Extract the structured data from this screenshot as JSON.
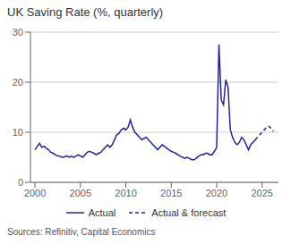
{
  "chart_data": {
    "type": "line",
    "title": "UK Saving Rate (%, quarterly)",
    "source": "Sources: Refinitiv, Capital Economics",
    "xlim": [
      1999.5,
      2026.8
    ],
    "xticks": [
      2000,
      2005,
      2010,
      2015,
      2020,
      2025
    ],
    "ylim": [
      0,
      30
    ],
    "yticks": [
      0,
      10,
      20,
      30
    ],
    "grid": true,
    "legend": "bottom",
    "series": [
      {
        "name": "Actual",
        "color": "#2323A0",
        "line_style": "solid",
        "x": [
          2000.0,
          2000.25,
          2000.5,
          2000.75,
          2001.0,
          2001.25,
          2001.5,
          2001.75,
          2002.0,
          2002.25,
          2002.5,
          2002.75,
          2003.0,
          2003.25,
          2003.5,
          2003.75,
          2004.0,
          2004.25,
          2004.5,
          2004.75,
          2005.0,
          2005.25,
          2005.5,
          2005.75,
          2006.0,
          2006.25,
          2006.5,
          2006.75,
          2007.0,
          2007.25,
          2007.5,
          2007.75,
          2008.0,
          2008.25,
          2008.5,
          2008.75,
          2009.0,
          2009.25,
          2009.5,
          2009.75,
          2010.0,
          2010.25,
          2010.5,
          2010.75,
          2011.0,
          2011.25,
          2011.5,
          2011.75,
          2012.0,
          2012.25,
          2012.5,
          2012.75,
          2013.0,
          2013.25,
          2013.5,
          2013.75,
          2014.0,
          2014.25,
          2014.5,
          2014.75,
          2015.0,
          2015.25,
          2015.5,
          2015.75,
          2016.0,
          2016.25,
          2016.5,
          2016.75,
          2017.0,
          2017.25,
          2017.5,
          2017.75,
          2018.0,
          2018.25,
          2018.5,
          2018.75,
          2019.0,
          2019.25,
          2019.5,
          2019.75,
          2020.0,
          2020.25,
          2020.5,
          2020.75,
          2021.0,
          2021.25,
          2021.5,
          2021.75,
          2022.0,
          2022.25,
          2022.5,
          2022.75,
          2023.0,
          2023.25,
          2023.5,
          2023.75,
          2024.0,
          2024.25
        ],
        "values": [
          6.5,
          7.2,
          7.8,
          7.0,
          7.2,
          6.8,
          6.5,
          6.0,
          5.8,
          5.5,
          5.3,
          5.2,
          5.0,
          5.1,
          5.3,
          5.0,
          5.2,
          5.0,
          5.2,
          5.5,
          5.3,
          5.0,
          5.5,
          6.0,
          6.2,
          6.0,
          5.8,
          5.5,
          5.8,
          6.0,
          6.5,
          7.0,
          7.5,
          7.0,
          7.5,
          8.5,
          9.5,
          9.8,
          10.5,
          10.8,
          10.5,
          11.0,
          12.5,
          11.0,
          10.0,
          9.5,
          9.0,
          8.5,
          8.8,
          9.0,
          8.5,
          8.0,
          7.5,
          7.0,
          6.5,
          7.0,
          7.5,
          7.2,
          6.8,
          6.5,
          6.2,
          6.0,
          5.8,
          5.5,
          5.2,
          5.0,
          4.8,
          5.0,
          4.8,
          4.5,
          4.5,
          4.8,
          5.2,
          5.5,
          5.5,
          5.8,
          5.8,
          5.5,
          5.5,
          6.2,
          7.0,
          27.5,
          16.5,
          15.5,
          20.5,
          19.0,
          10.5,
          9.0,
          8.0,
          7.5,
          8.0,
          9.0,
          8.5,
          7.5,
          6.5,
          7.5,
          8.0,
          8.5
        ]
      },
      {
        "name": "Actual & forecast",
        "color": "#2323A0",
        "line_style": "dashed",
        "x": [
          2024.25,
          2024.5,
          2024.75,
          2025.0,
          2025.25,
          2025.5,
          2025.75,
          2026.0,
          2026.25
        ],
        "values": [
          8.5,
          9.0,
          9.5,
          10.0,
          10.5,
          11.0,
          11.2,
          10.8,
          10.2
        ]
      }
    ]
  }
}
